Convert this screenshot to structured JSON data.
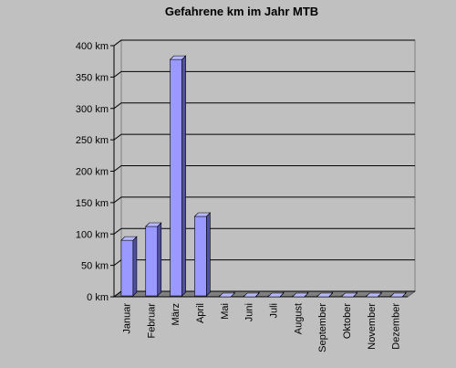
{
  "chart_data": {
    "type": "bar3d",
    "title": "Gefahrene km im Jahr MTB",
    "categories": [
      "Januar",
      "Februar",
      "März",
      "April",
      "Mai",
      "Juni",
      "Juli",
      "August",
      "September",
      "Oktober",
      "November",
      "Dezember"
    ],
    "values": [
      90,
      112,
      378,
      128,
      0,
      0,
      0,
      0,
      0,
      0,
      0,
      0
    ],
    "color": "#9999ff",
    "ylim": [
      0,
      400
    ],
    "yticks": [
      {
        "value": 0,
        "label": "0 km"
      },
      {
        "value": 50,
        "label": "50 km"
      },
      {
        "value": 100,
        "label": "100 km"
      },
      {
        "value": 150,
        "label": "150 km"
      },
      {
        "value": 200,
        "label": "200 km"
      },
      {
        "value": 250,
        "label": "250 km"
      },
      {
        "value": 300,
        "label": "300 km"
      },
      {
        "value": 350,
        "label": "350 km"
      },
      {
        "value": 400,
        "label": "400 km"
      }
    ],
    "grid": true
  }
}
